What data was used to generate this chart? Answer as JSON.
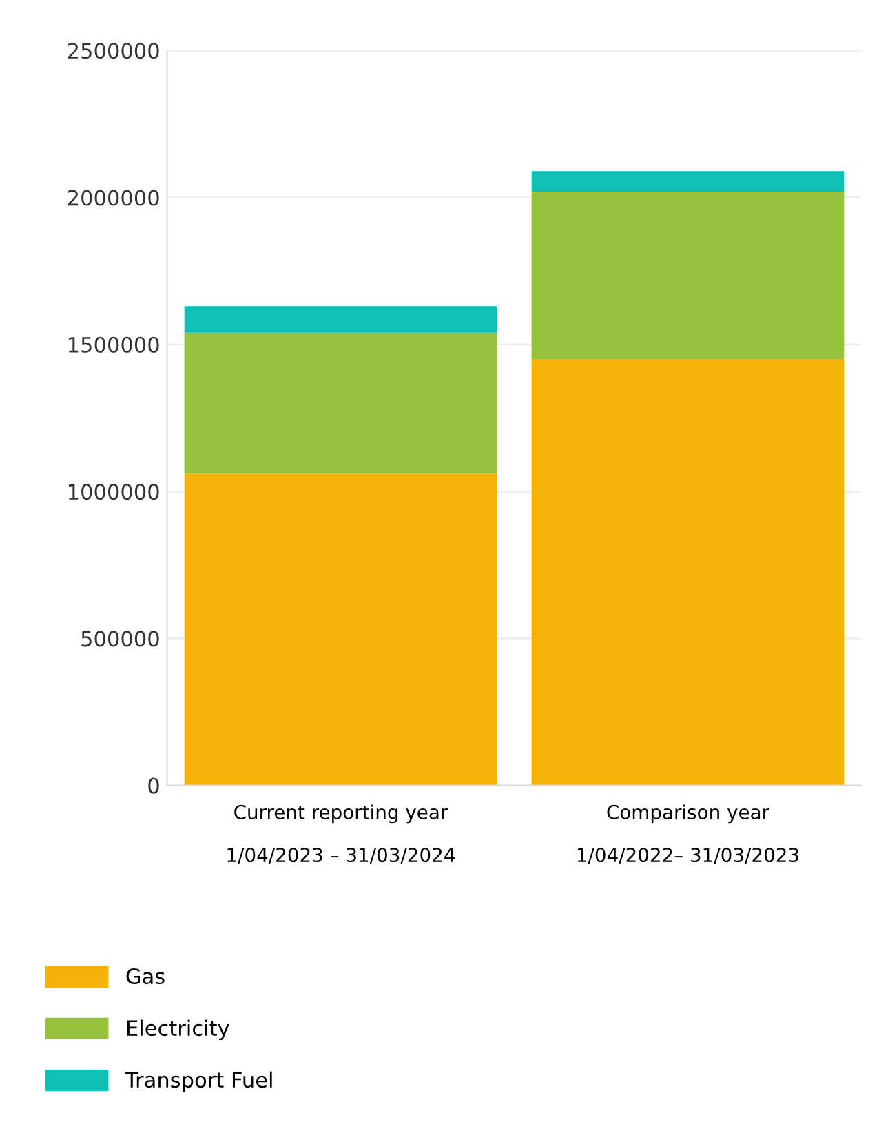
{
  "chart_data": {
    "type": "bar",
    "stacked": true,
    "categories": [
      "Current reporting year\n\n1/04/2023 – 31/03/2024",
      "Comparison year\n\n1/04/2022– 31/03/2023"
    ],
    "series": [
      {
        "name": "Gas",
        "color": "#f5b30a",
        "values": [
          1060000,
          1450000
        ]
      },
      {
        "name": "Electricity",
        "color": "#97c23e",
        "values": [
          480000,
          570000
        ]
      },
      {
        "name": "Transport Fuel",
        "color": "#10c0b4",
        "values": [
          90000,
          70000
        ]
      }
    ],
    "ylim": [
      0,
      2500000
    ],
    "yticks": [
      0,
      500000,
      1000000,
      1500000,
      2000000,
      2500000
    ],
    "grid": "y",
    "legend": "bottom"
  }
}
